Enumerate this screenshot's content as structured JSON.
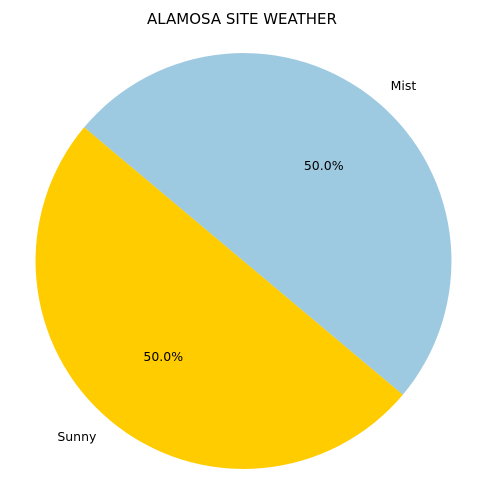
{
  "chart_data": {
    "type": "pie",
    "title": "ALAMOSA SITE WEATHER",
    "slices": [
      {
        "label": "Sunny",
        "value": 50.0,
        "display": "50.0%",
        "color": "#FFCC00"
      },
      {
        "label": "Mist",
        "value": 50.0,
        "display": "50.0%",
        "color": "#9ECAE1"
      }
    ],
    "start_angle_deg": 140,
    "legend": "none"
  }
}
